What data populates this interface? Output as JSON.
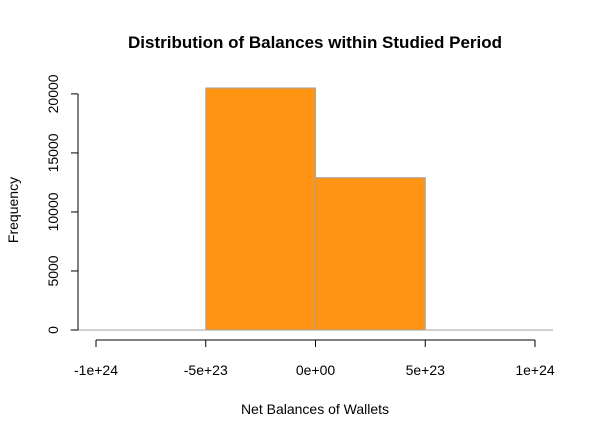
{
  "chart_data": {
    "type": "bar",
    "title": "Distribution of Balances within Studied Period",
    "xlabel": "Net Balances of Wallets",
    "ylabel": "Frequency",
    "bins": [
      {
        "start": -5e+23,
        "end": 0,
        "count": 20500
      },
      {
        "start": 0,
        "end": 5e+23,
        "count": 12900
      }
    ],
    "xlim": [
      -1e+24,
      1e+24
    ],
    "ylim": [
      0,
      20500
    ],
    "x_ticks": [
      -1e+24,
      -5e+23,
      0,
      5e+23,
      1e+24
    ],
    "x_tick_labels": [
      "-1e+24",
      "-5e+23",
      "0e+00",
      "5e+23",
      "1e+24"
    ],
    "y_ticks": [
      0,
      5000,
      10000,
      15000,
      20000
    ],
    "y_tick_labels": [
      "0",
      "5000",
      "10000",
      "15000",
      "20000"
    ],
    "bar_color": "#ff9312",
    "bar_border_color": "#a0a0a0",
    "grid": false,
    "legend": "none"
  }
}
